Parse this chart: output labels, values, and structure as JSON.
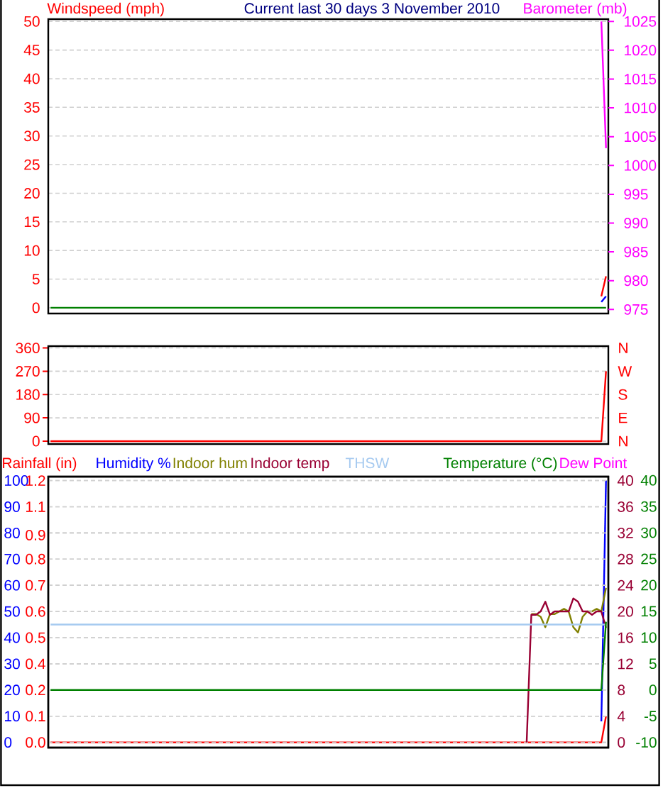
{
  "chart_data": [
    {
      "type": "line",
      "title": "Current last 30 days 3 November 2010",
      "ylabel": "Windspeed (mph)",
      "y2label": "Barometer (mb)",
      "categories": [
        null,
        null,
        null,
        null,
        null,
        null,
        null,
        null,
        null,
        null,
        null,
        null,
        null,
        null,
        null,
        null,
        null,
        null,
        null,
        null,
        null,
        null,
        null,
        null,
        null,
        null,
        null,
        null,
        null,
        null,
        null,
        null,
        null,
        null,
        null,
        null,
        null,
        null,
        null,
        null,
        null,
        null,
        null,
        null,
        null,
        null,
        null,
        null,
        null,
        null,
        null,
        null,
        null,
        null,
        null,
        null,
        null,
        null,
        null,
        null,
        null,
        null,
        null,
        null,
        null,
        null,
        null,
        null,
        null,
        null,
        null,
        null,
        null,
        null,
        null,
        null,
        null,
        null,
        null,
        null,
        null,
        null,
        null,
        null,
        null,
        null,
        null,
        null,
        null,
        null,
        null,
        null,
        null,
        null,
        null,
        null,
        null,
        null,
        null,
        null,
        null,
        null,
        null,
        null,
        null,
        null,
        null,
        null,
        null,
        null,
        null,
        null,
        null,
        null,
        null,
        null,
        null,
        null,
        null,
        null
      ],
      "series": [
        {
          "color": "#ff0000",
          "values": [
            null,
            null,
            null,
            null,
            null,
            null,
            null,
            null,
            null,
            null,
            null,
            null,
            null,
            null,
            null,
            null,
            null,
            null,
            null,
            null,
            null,
            null,
            null,
            null,
            null,
            null,
            null,
            null,
            null,
            null,
            null,
            null,
            null,
            null,
            null,
            null,
            null,
            null,
            null,
            null,
            null,
            null,
            null,
            null,
            null,
            null,
            null,
            null,
            null,
            null,
            null,
            null,
            null,
            null,
            null,
            null,
            null,
            null,
            null,
            null,
            null,
            null,
            null,
            null,
            null,
            null,
            null,
            null,
            null,
            null,
            null,
            null,
            null,
            null,
            null,
            null,
            null,
            null,
            null,
            null,
            null,
            null,
            null,
            null,
            null,
            null,
            null,
            null,
            null,
            null,
            null,
            null,
            null,
            null,
            null,
            null,
            null,
            null,
            null,
            null,
            null,
            null,
            null,
            null,
            null,
            null,
            null,
            null,
            null,
            null,
            null,
            null,
            null,
            null,
            null,
            null,
            null,
            null,
            2,
            5.5
          ]
        },
        {
          "color": "#0000ff",
          "values": [
            null,
            null,
            null,
            null,
            null,
            null,
            null,
            null,
            null,
            null,
            null,
            null,
            null,
            null,
            null,
            null,
            null,
            null,
            null,
            null,
            null,
            null,
            null,
            null,
            null,
            null,
            null,
            null,
            null,
            null,
            null,
            null,
            null,
            null,
            null,
            null,
            null,
            null,
            null,
            null,
            null,
            null,
            null,
            null,
            null,
            null,
            null,
            null,
            null,
            null,
            null,
            null,
            null,
            null,
            null,
            null,
            null,
            null,
            null,
            null,
            null,
            null,
            null,
            null,
            null,
            null,
            null,
            null,
            null,
            null,
            null,
            null,
            null,
            null,
            null,
            null,
            null,
            null,
            null,
            null,
            null,
            null,
            null,
            null,
            null,
            null,
            null,
            null,
            null,
            null,
            null,
            null,
            null,
            null,
            null,
            null,
            null,
            null,
            null,
            null,
            null,
            null,
            null,
            null,
            null,
            null,
            null,
            null,
            null,
            null,
            null,
            null,
            null,
            null,
            null,
            null,
            null,
            null,
            1,
            2
          ]
        },
        {
          "color": "#008000",
          "values": [
            0,
            0,
            0,
            0,
            0,
            0,
            0,
            0,
            0,
            0,
            0,
            0,
            0,
            0,
            0,
            0,
            0,
            0,
            0,
            0,
            0,
            0,
            0,
            0,
            0,
            0,
            0,
            0,
            0,
            0,
            0,
            0,
            0,
            0,
            0,
            0,
            0,
            0,
            0,
            0,
            0,
            0,
            0,
            0,
            0,
            0,
            0,
            0,
            0,
            0,
            0,
            0,
            0,
            0,
            0,
            0,
            0,
            0,
            0,
            0,
            0,
            0,
            0,
            0,
            0,
            0,
            0,
            0,
            0,
            0,
            0,
            0,
            0,
            0,
            0,
            0,
            0,
            0,
            0,
            0,
            0,
            0,
            0,
            0,
            0,
            0,
            0,
            0,
            0,
            0,
            0,
            0,
            0,
            0,
            0,
            0,
            0,
            0,
            0,
            0,
            0,
            0,
            0,
            0,
            0,
            0,
            0,
            0,
            0,
            0,
            0,
            0,
            0,
            0,
            0,
            0,
            0,
            0,
            0,
            0
          ]
        },
        {
          "color": "#ff00ff",
          "axis": "y2",
          "values": [
            null,
            null,
            null,
            null,
            null,
            null,
            null,
            null,
            null,
            null,
            null,
            null,
            null,
            null,
            null,
            null,
            null,
            null,
            null,
            null,
            null,
            null,
            null,
            null,
            null,
            null,
            null,
            null,
            null,
            null,
            null,
            null,
            null,
            null,
            null,
            null,
            null,
            null,
            null,
            null,
            null,
            null,
            null,
            null,
            null,
            null,
            null,
            null,
            null,
            null,
            null,
            null,
            null,
            null,
            null,
            null,
            null,
            null,
            null,
            null,
            null,
            null,
            null,
            null,
            null,
            null,
            null,
            null,
            null,
            null,
            null,
            null,
            null,
            null,
            null,
            null,
            null,
            null,
            null,
            null,
            null,
            null,
            null,
            null,
            null,
            null,
            null,
            null,
            null,
            null,
            null,
            null,
            null,
            null,
            null,
            null,
            null,
            null,
            null,
            null,
            null,
            null,
            null,
            null,
            null,
            null,
            null,
            null,
            null,
            null,
            null,
            null,
            null,
            null,
            null,
            null,
            null,
            null,
            1025,
            1003
          ]
        }
      ],
      "ylim": [
        -1,
        50.4
      ],
      "yticks": [
        0,
        5,
        10,
        15,
        20,
        25,
        30,
        35,
        40,
        45,
        50
      ],
      "y2lim": [
        974.3,
        1025.4
      ],
      "y2ticks": [
        975,
        980,
        985,
        990,
        995,
        1000,
        1005,
        1010,
        1015,
        1020,
        1025
      ],
      "grid": "y"
    },
    {
      "type": "line",
      "annotations": [
        "N",
        "W",
        "S",
        "E",
        "N"
      ],
      "categories": [
        null,
        null,
        null,
        null,
        null,
        null,
        null,
        null,
        null,
        null,
        null,
        null,
        null,
        null,
        null,
        null,
        null,
        null,
        null,
        null,
        null,
        null,
        null,
        null,
        null,
        null,
        null,
        null,
        null,
        null,
        null,
        null,
        null,
        null,
        null,
        null,
        null,
        null,
        null,
        null,
        null,
        null,
        null,
        null,
        null,
        null,
        null,
        null,
        null,
        null,
        null,
        null,
        null,
        null,
        null,
        null,
        null,
        null,
        null,
        null,
        null,
        null,
        null,
        null,
        null,
        null,
        null,
        null,
        null,
        null,
        null,
        null,
        null,
        null,
        null,
        null,
        null,
        null,
        null,
        null,
        null,
        null,
        null,
        null,
        null,
        null,
        null,
        null,
        null,
        null,
        null,
        null,
        null,
        null,
        null,
        null,
        null,
        null,
        null,
        null,
        null,
        null,
        null,
        null,
        null,
        null,
        null,
        null,
        null,
        null,
        null,
        null,
        null,
        null,
        null,
        null,
        null,
        null,
        null,
        null
      ],
      "series": [
        {
          "color": "#ff0000",
          "values": [
            0,
            0,
            0,
            0,
            0,
            0,
            0,
            0,
            0,
            0,
            0,
            0,
            0,
            0,
            0,
            0,
            0,
            0,
            0,
            0,
            0,
            0,
            0,
            0,
            0,
            0,
            0,
            0,
            0,
            0,
            0,
            0,
            0,
            0,
            0,
            0,
            0,
            0,
            0,
            0,
            0,
            0,
            0,
            0,
            0,
            0,
            0,
            0,
            0,
            0,
            0,
            0,
            0,
            0,
            0,
            0,
            0,
            0,
            0,
            0,
            0,
            0,
            0,
            0,
            0,
            0,
            0,
            0,
            0,
            0,
            0,
            0,
            0,
            0,
            0,
            0,
            0,
            0,
            0,
            0,
            0,
            0,
            0,
            0,
            0,
            0,
            0,
            0,
            0,
            0,
            0,
            0,
            0,
            0,
            0,
            0,
            0,
            0,
            0,
            0,
            0,
            0,
            0,
            0,
            0,
            0,
            0,
            0,
            0,
            0,
            0,
            0,
            0,
            0,
            0,
            0,
            0,
            0,
            0,
            270
          ]
        }
      ],
      "ylim": [
        -11,
        367
      ],
      "yticks": [
        0,
        90,
        180,
        270,
        360
      ],
      "grid": "y"
    },
    {
      "type": "line",
      "legend": "top",
      "categories": [
        null,
        null,
        null,
        null,
        null,
        null,
        null,
        null,
        null,
        null,
        null,
        null,
        null,
        null,
        null,
        null,
        null,
        null,
        null,
        null,
        null,
        null,
        null,
        null,
        null,
        null,
        null,
        null,
        null,
        null,
        null,
        null,
        null,
        null,
        null,
        null,
        null,
        null,
        null,
        null,
        null,
        null,
        null,
        null,
        null,
        null,
        null,
        null,
        null,
        null,
        null,
        null,
        null,
        null,
        null,
        null,
        null,
        null,
        null,
        null,
        null,
        null,
        null,
        null,
        null,
        null,
        null,
        null,
        null,
        null,
        null,
        null,
        null,
        null,
        null,
        null,
        null,
        null,
        null,
        null,
        null,
        null,
        null,
        null,
        null,
        null,
        null,
        null,
        null,
        null,
        null,
        null,
        null,
        null,
        null,
        null,
        null,
        null,
        null,
        null,
        null,
        null,
        null,
        null,
        null,
        null,
        null,
        null,
        null,
        null,
        null,
        null,
        null,
        null,
        null,
        null,
        null,
        null,
        null,
        null
      ],
      "series": [
        {
          "name": "Rainfall (in)",
          "color": "#ff0000",
          "axis": "y2",
          "values": [
            0,
            0,
            0,
            0,
            0,
            0,
            0,
            0,
            0,
            0,
            0,
            0,
            0,
            0,
            0,
            0,
            0,
            0,
            0,
            0,
            0,
            0,
            0,
            0,
            0,
            0,
            0,
            0,
            0,
            0,
            0,
            0,
            0,
            0,
            0,
            0,
            0,
            0,
            0,
            0,
            0,
            0,
            0,
            0,
            0,
            0,
            0,
            0,
            0,
            0,
            0,
            0,
            0,
            0,
            0,
            0,
            0,
            0,
            0,
            0,
            0,
            0,
            0,
            0,
            0,
            0,
            0,
            0,
            0,
            0,
            0,
            0,
            0,
            0,
            0,
            0,
            0,
            0,
            0,
            0,
            0,
            0,
            0,
            0,
            0,
            0,
            0,
            0,
            0,
            0,
            0,
            0,
            0,
            0,
            0,
            0,
            0,
            0,
            0,
            0,
            0,
            0,
            0,
            0,
            0,
            0,
            0,
            0,
            0,
            0,
            0,
            0,
            0,
            0,
            0,
            0,
            0,
            0,
            0,
            0.12
          ]
        },
        {
          "name": "Humidity %",
          "color": "#0000ff",
          "values": [
            null,
            null,
            null,
            null,
            null,
            null,
            null,
            null,
            null,
            null,
            null,
            null,
            null,
            null,
            null,
            null,
            null,
            null,
            null,
            null,
            null,
            null,
            null,
            null,
            null,
            null,
            null,
            null,
            null,
            null,
            null,
            null,
            null,
            null,
            null,
            null,
            null,
            null,
            null,
            null,
            null,
            null,
            null,
            null,
            null,
            null,
            null,
            null,
            null,
            null,
            null,
            null,
            null,
            null,
            null,
            null,
            null,
            null,
            null,
            null,
            null,
            null,
            null,
            null,
            null,
            null,
            null,
            null,
            null,
            null,
            null,
            null,
            null,
            null,
            null,
            null,
            null,
            null,
            null,
            null,
            null,
            null,
            null,
            null,
            null,
            null,
            null,
            null,
            null,
            null,
            null,
            null,
            null,
            null,
            null,
            null,
            null,
            null,
            null,
            null,
            null,
            null,
            null,
            null,
            null,
            null,
            null,
            null,
            null,
            null,
            null,
            null,
            null,
            null,
            null,
            null,
            null,
            null,
            8,
            100
          ]
        },
        {
          "name": "Indoor hum",
          "color": "#808000",
          "values": [
            null,
            null,
            null,
            null,
            null,
            null,
            null,
            null,
            null,
            null,
            null,
            null,
            null,
            null,
            null,
            null,
            null,
            null,
            null,
            null,
            null,
            null,
            null,
            null,
            null,
            null,
            null,
            null,
            null,
            null,
            null,
            null,
            null,
            null,
            null,
            null,
            null,
            null,
            null,
            null,
            null,
            null,
            null,
            null,
            null,
            null,
            null,
            null,
            null,
            null,
            null,
            null,
            null,
            null,
            null,
            null,
            null,
            null,
            null,
            null,
            null,
            null,
            null,
            null,
            null,
            null,
            null,
            null,
            null,
            null,
            null,
            null,
            null,
            null,
            null,
            null,
            null,
            null,
            null,
            null,
            null,
            null,
            null,
            null,
            null,
            null,
            null,
            null,
            null,
            null,
            null,
            null,
            null,
            null,
            null,
            null,
            null,
            null,
            null,
            null,
            null,
            null,
            null,
            49,
            49,
            48,
            44,
            49,
            49,
            50,
            51,
            50,
            44,
            42,
            48,
            50,
            50,
            51,
            50,
            59
          ]
        }
      ],
      "ylim": [
        -2,
        101.5
      ],
      "yticks": [
        0,
        10,
        20,
        30,
        40,
        50,
        60,
        70,
        80,
        90,
        100
      ],
      "y2lim": [
        -0.024,
        1.218
      ],
      "y2ticks": [
        {
          "value": 0,
          "label": "0.0"
        },
        {
          "value": 0.12,
          "label": "0.1"
        },
        {
          "value": 0.24,
          "label": "0.2"
        },
        {
          "value": 0.36,
          "label": "0.4"
        },
        {
          "value": 0.48,
          "label": "0.5"
        },
        0.6,
        {
          "value": 0.72,
          "label": "0.7"
        },
        {
          "value": 0.84,
          "label": "0.8"
        },
        {
          "value": 0.95,
          "label": "0.9"
        },
        {
          "value": 1.08,
          "label": "1.1"
        },
        1.2
      ],
      "grid": "y"
    },
    {
      "type": "line",
      "legend": "top",
      "categories": [
        null,
        null,
        null,
        null,
        null,
        null,
        null,
        null,
        null,
        null,
        null,
        null,
        null,
        null,
        null,
        null,
        null,
        null,
        null,
        null,
        null,
        null,
        null,
        null,
        null,
        null,
        null,
        null,
        null,
        null,
        null,
        null,
        null,
        null,
        null,
        null,
        null,
        null,
        null,
        null,
        null,
        null,
        null,
        null,
        null,
        null,
        null,
        null,
        null,
        null,
        null,
        null,
        null,
        null,
        null,
        null,
        null,
        null,
        null,
        null,
        null,
        null,
        null,
        null,
        null,
        null,
        null,
        null,
        null,
        null,
        null,
        null,
        null,
        null,
        null,
        null,
        null,
        null,
        null,
        null,
        null,
        null,
        null,
        null,
        null,
        null,
        null,
        null,
        null,
        null,
        null,
        null,
        null,
        null,
        null,
        null,
        null,
        null,
        null,
        null,
        null,
        null,
        null,
        null,
        null,
        null,
        null,
        null,
        null,
        null,
        null,
        null,
        null,
        null,
        null,
        null,
        null,
        null,
        null,
        null
      ],
      "series": [
        {
          "name": "Indoor temp",
          "color": "#990033",
          "values": [
            null,
            null,
            null,
            null,
            null,
            null,
            null,
            null,
            null,
            null,
            null,
            null,
            null,
            null,
            null,
            null,
            null,
            null,
            null,
            null,
            null,
            null,
            null,
            null,
            null,
            null,
            null,
            null,
            null,
            null,
            null,
            null,
            null,
            null,
            null,
            null,
            null,
            null,
            null,
            null,
            null,
            null,
            null,
            null,
            null,
            null,
            null,
            null,
            null,
            null,
            null,
            null,
            null,
            null,
            null,
            null,
            null,
            null,
            null,
            null,
            null,
            null,
            null,
            null,
            null,
            null,
            null,
            null,
            null,
            null,
            null,
            null,
            null,
            null,
            null,
            null,
            null,
            null,
            null,
            null,
            null,
            null,
            null,
            null,
            null,
            null,
            null,
            null,
            null,
            null,
            null,
            null,
            null,
            null,
            null,
            null,
            null,
            null,
            null,
            null,
            null,
            null,
            0,
            19.5,
            19.5,
            20,
            21.5,
            19.5,
            20,
            20,
            20,
            20,
            22,
            21.5,
            20,
            20,
            19.5,
            20,
            20,
            17.5
          ]
        },
        {
          "name": "THSW",
          "color": "#a6caf0",
          "values": [
            18,
            18,
            18,
            18,
            18,
            18,
            18,
            18,
            18,
            18,
            18,
            18,
            18,
            18,
            18,
            18,
            18,
            18,
            18,
            18,
            18,
            18,
            18,
            18,
            18,
            18,
            18,
            18,
            18,
            18,
            18,
            18,
            18,
            18,
            18,
            18,
            18,
            18,
            18,
            18,
            18,
            18,
            18,
            18,
            18,
            18,
            18,
            18,
            18,
            18,
            18,
            18,
            18,
            18,
            18,
            18,
            18,
            18,
            18,
            18,
            18,
            18,
            18,
            18,
            18,
            18,
            18,
            18,
            18,
            18,
            18,
            18,
            18,
            18,
            18,
            18,
            18,
            18,
            18,
            18,
            18,
            18,
            18,
            18,
            18,
            18,
            18,
            18,
            18,
            18,
            18,
            18,
            18,
            18,
            18,
            18,
            18,
            18,
            18,
            18,
            18,
            18,
            18,
            18,
            18,
            18,
            18,
            18,
            18,
            18,
            18,
            18,
            18,
            18,
            18,
            18,
            18,
            18,
            18,
            18
          ]
        },
        {
          "name": "Temperature (°C)",
          "color": "#008000",
          "axis": "y2",
          "values": [
            0,
            0,
            0,
            0,
            0,
            0,
            0,
            0,
            0,
            0,
            0,
            0,
            0,
            0,
            0,
            0,
            0,
            0,
            0,
            0,
            0,
            0,
            0,
            0,
            0,
            0,
            0,
            0,
            0,
            0,
            0,
            0,
            0,
            0,
            0,
            0,
            0,
            0,
            0,
            0,
            0,
            0,
            0,
            0,
            0,
            0,
            0,
            0,
            0,
            0,
            0,
            0,
            0,
            0,
            0,
            0,
            0,
            0,
            0,
            0,
            0,
            0,
            0,
            0,
            0,
            0,
            0,
            0,
            0,
            0,
            0,
            0,
            0,
            0,
            0,
            0,
            0,
            0,
            0,
            0,
            0,
            0,
            0,
            0,
            0,
            0,
            0,
            0,
            0,
            0,
            0,
            0,
            0,
            0,
            0,
            0,
            0,
            0,
            0,
            0,
            0,
            0,
            0,
            0,
            0,
            0,
            0,
            0,
            0,
            0,
            0,
            0,
            0,
            0,
            0,
            0,
            0,
            0,
            0,
            13
          ]
        },
        {
          "name": "Dew Point",
          "color": "#ff00ff",
          "axis": "y2",
          "values": [
            null,
            null,
            null,
            null,
            null,
            null,
            null,
            null,
            null,
            null,
            null,
            null,
            null,
            null,
            null,
            null,
            null,
            null,
            null,
            null,
            null,
            null,
            null,
            null,
            null,
            null,
            null,
            null,
            null,
            null,
            null,
            null,
            null,
            null,
            null,
            null,
            null,
            null,
            null,
            null,
            null,
            null,
            null,
            null,
            null,
            null,
            null,
            null,
            null,
            null,
            null,
            null,
            null,
            null,
            null,
            null,
            null,
            null,
            null,
            null,
            null,
            null,
            null,
            null,
            null,
            null,
            null,
            null,
            null,
            null,
            null,
            null,
            null,
            null,
            null,
            null,
            null,
            null,
            null,
            null,
            null,
            null,
            null,
            null,
            null,
            null,
            null,
            null,
            null,
            null,
            null,
            null,
            null,
            null,
            null,
            null,
            null,
            null,
            null,
            null,
            null,
            null,
            null,
            null,
            null,
            null,
            null,
            null,
            null,
            null,
            null,
            null,
            null,
            null,
            null,
            null,
            null,
            null,
            null,
            null
          ]
        }
      ],
      "ylim": [
        -0.8,
        40.6
      ],
      "yticks": [
        0,
        4,
        8,
        12,
        16,
        20,
        24,
        28,
        32,
        36,
        40
      ],
      "y2lim": [
        -11,
        40.7
      ],
      "y2ticks": [
        -10,
        -5,
        0,
        5,
        10,
        15,
        20,
        25,
        30,
        35,
        40
      ],
      "grid": "y"
    }
  ]
}
